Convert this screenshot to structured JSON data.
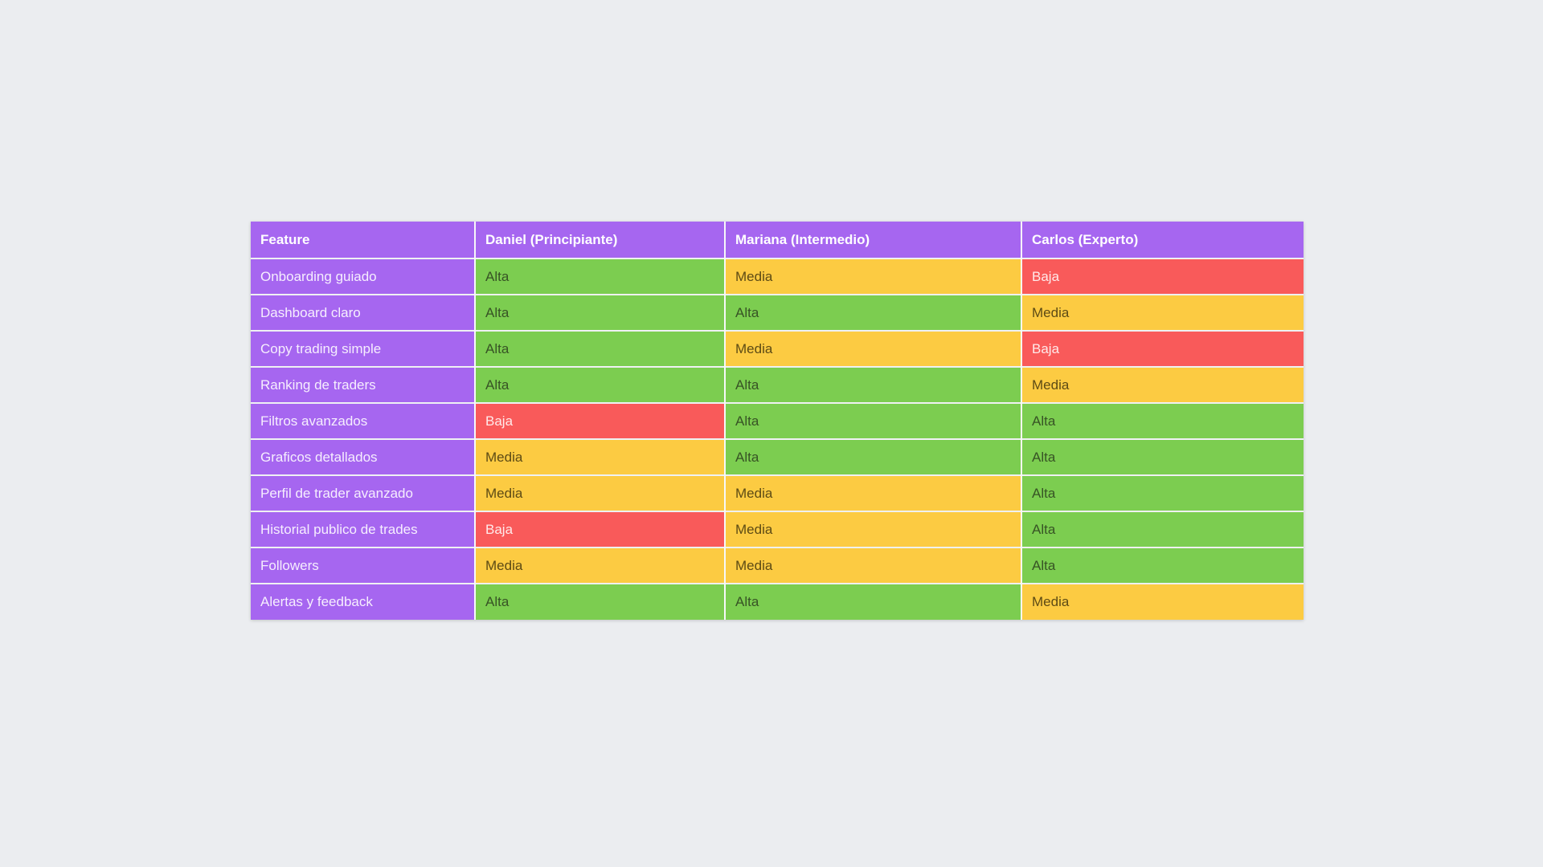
{
  "page": {
    "background": "#ebedf0"
  },
  "table": {
    "columns": [
      "Feature",
      "Daniel (Principiante)",
      "Mariana (Intermedio)",
      "Carlos (Experto)"
    ],
    "rows": [
      {
        "feature": "Onboarding guiado",
        "values": [
          "Alta",
          "Media",
          "Baja"
        ]
      },
      {
        "feature": "Dashboard claro",
        "values": [
          "Alta",
          "Alta",
          "Media"
        ]
      },
      {
        "feature": "Copy trading simple",
        "values": [
          "Alta",
          "Media",
          "Baja"
        ]
      },
      {
        "feature": "Ranking de traders",
        "values": [
          "Alta",
          "Alta",
          "Media"
        ]
      },
      {
        "feature": "Filtros avanzados",
        "values": [
          "Baja",
          "Alta",
          "Alta"
        ]
      },
      {
        "feature": "Graficos detallados",
        "values": [
          "Media",
          "Alta",
          "Alta"
        ]
      },
      {
        "feature": "Perfil de trader avanzado",
        "values": [
          "Media",
          "Media",
          "Alta"
        ]
      },
      {
        "feature": "Historial publico de trades",
        "values": [
          "Baja",
          "Media",
          "Alta"
        ]
      },
      {
        "feature": "Followers",
        "values": [
          "Media",
          "Media",
          "Alta"
        ]
      },
      {
        "feature": "Alertas y feedback",
        "values": [
          "Alta",
          "Alta",
          "Media"
        ]
      }
    ],
    "colors": {
      "header_bg": "#a666f0",
      "header_fg": "#ffffff",
      "feature_bg": "#a666f0",
      "feature_fg": "#f6eefe",
      "levels": {
        "Alta": {
          "bg": "#7ccd50",
          "fg": "#375325"
        },
        "Media": {
          "bg": "#fccb42",
          "fg": "#5d4b15"
        },
        "Baja": {
          "bg": "#f95a5a",
          "fg": "#ffeaea"
        }
      }
    }
  },
  "chart_data": {
    "type": "table",
    "title": "",
    "columns": [
      "Feature",
      "Daniel (Principiante)",
      "Mariana (Intermedio)",
      "Carlos (Experto)"
    ],
    "rows": [
      [
        "Onboarding guiado",
        "Alta",
        "Media",
        "Baja"
      ],
      [
        "Dashboard claro",
        "Alta",
        "Alta",
        "Media"
      ],
      [
        "Copy trading simple",
        "Alta",
        "Media",
        "Baja"
      ],
      [
        "Ranking de traders",
        "Alta",
        "Alta",
        "Media"
      ],
      [
        "Filtros avanzados",
        "Baja",
        "Alta",
        "Alta"
      ],
      [
        "Graficos detallados",
        "Media",
        "Alta",
        "Alta"
      ],
      [
        "Perfil de trader avanzado",
        "Media",
        "Media",
        "Alta"
      ],
      [
        "Historial publico de trades",
        "Baja",
        "Media",
        "Alta"
      ],
      [
        "Followers",
        "Media",
        "Media",
        "Alta"
      ],
      [
        "Alertas y feedback",
        "Alta",
        "Alta",
        "Media"
      ]
    ],
    "legend": {
      "Alta": "green #7ccd50",
      "Media": "amber #fccb42",
      "Baja": "red #f95a5a"
    },
    "layout": "priority matrix; first column and header purple #a666f0; cells colored by priority level"
  }
}
